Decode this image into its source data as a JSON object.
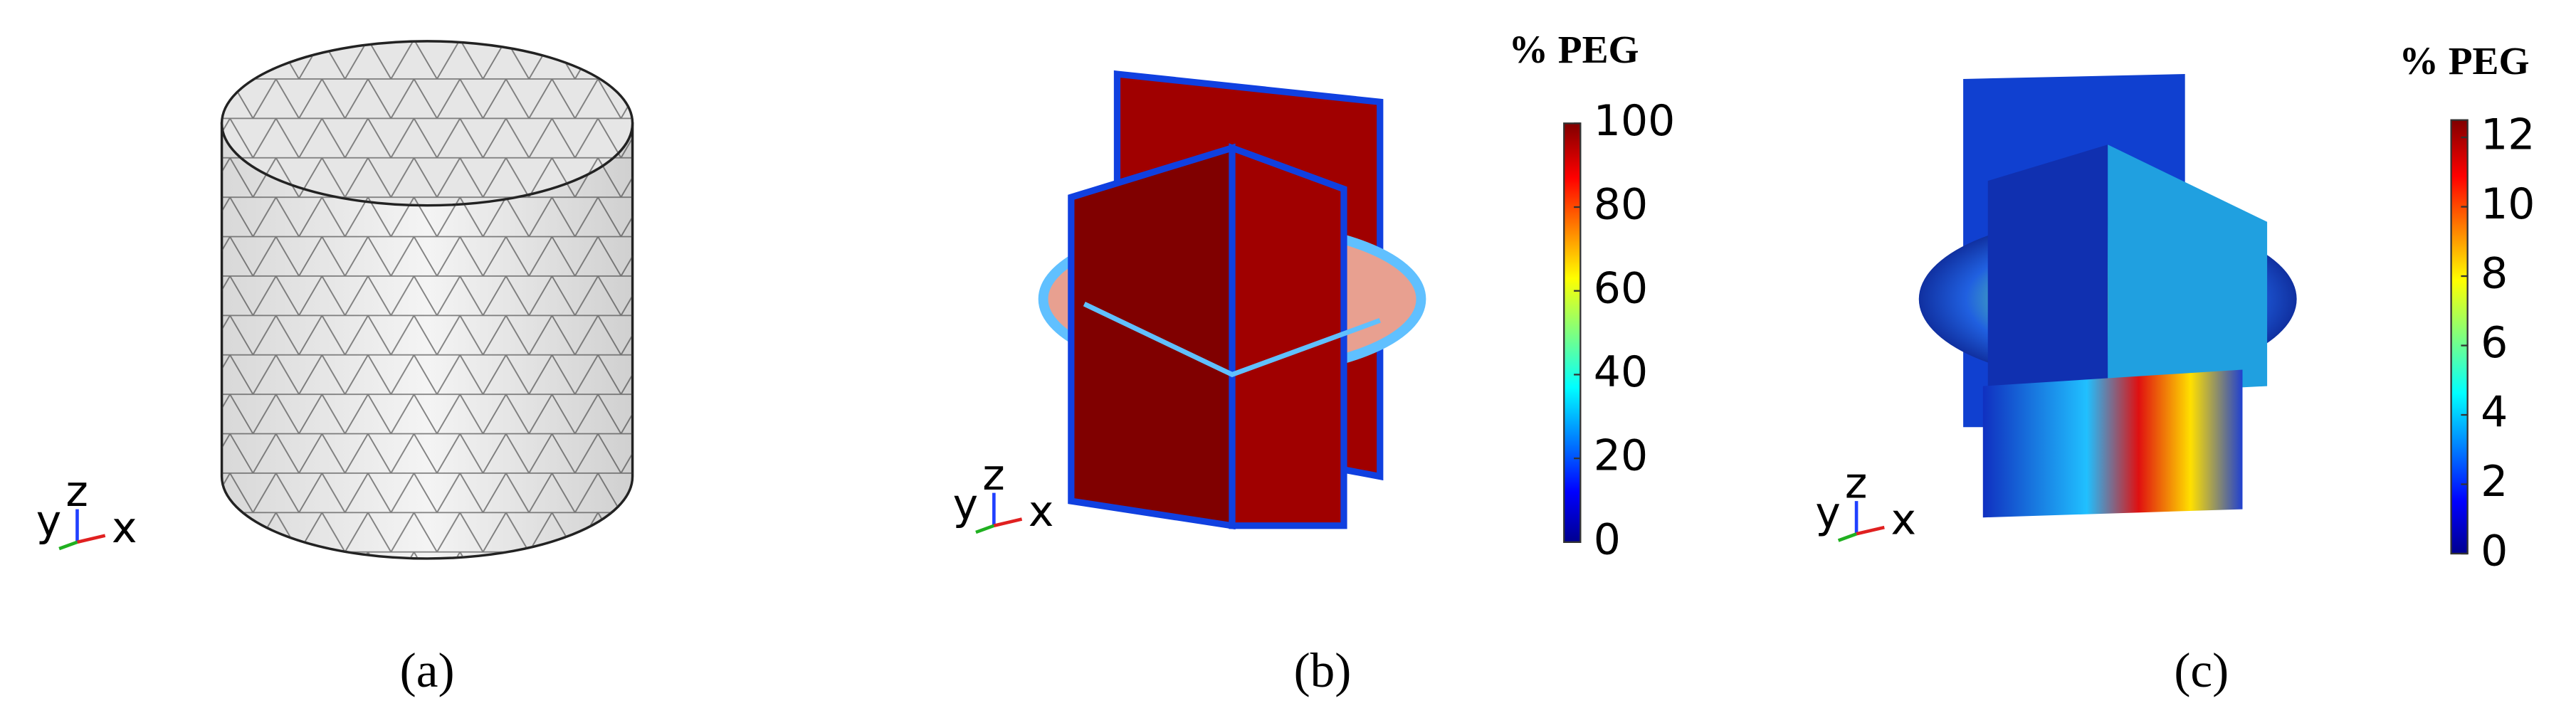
{
  "panels": [
    {
      "label": "(a)",
      "triad": [
        "y",
        "z",
        "x"
      ]
    },
    {
      "label": "(b)",
      "triad": [
        "y",
        "z",
        "x"
      ],
      "colorbar": {
        "title": "% PEG",
        "lim": [
          0,
          100
        ],
        "ticks": [
          0,
          20,
          40,
          60,
          80,
          100
        ]
      }
    },
    {
      "label": "(c)",
      "triad": [
        "y",
        "z",
        "x"
      ],
      "colorbar": {
        "title": "% PEG",
        "lim": [
          0,
          12.5
        ],
        "ticks": [
          0,
          2,
          4,
          6,
          8,
          10,
          12
        ]
      }
    }
  ]
}
